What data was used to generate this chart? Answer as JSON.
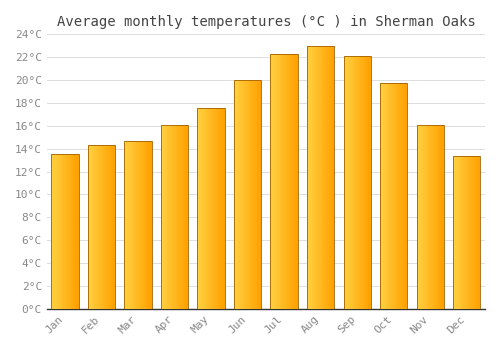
{
  "title": "Average monthly temperatures (°C ) in Sherman Oaks",
  "months": [
    "Jan",
    "Feb",
    "Mar",
    "Apr",
    "May",
    "Jun",
    "Jul",
    "Aug",
    "Sep",
    "Oct",
    "Nov",
    "Dec"
  ],
  "values": [
    13.5,
    14.3,
    14.7,
    16.1,
    17.6,
    20.0,
    22.3,
    23.0,
    22.1,
    19.7,
    16.1,
    13.4
  ],
  "bar_color_left": "#FFD040",
  "bar_color_right": "#FFA000",
  "bar_edge_color": "#A06000",
  "ylim": [
    0,
    24
  ],
  "yticks": [
    0,
    2,
    4,
    6,
    8,
    10,
    12,
    14,
    16,
    18,
    20,
    22,
    24
  ],
  "background_color": "#FFFFFF",
  "grid_color": "#DDDDDD",
  "title_fontsize": 10,
  "tick_fontsize": 8,
  "font_family": "monospace",
  "bar_width": 0.75
}
